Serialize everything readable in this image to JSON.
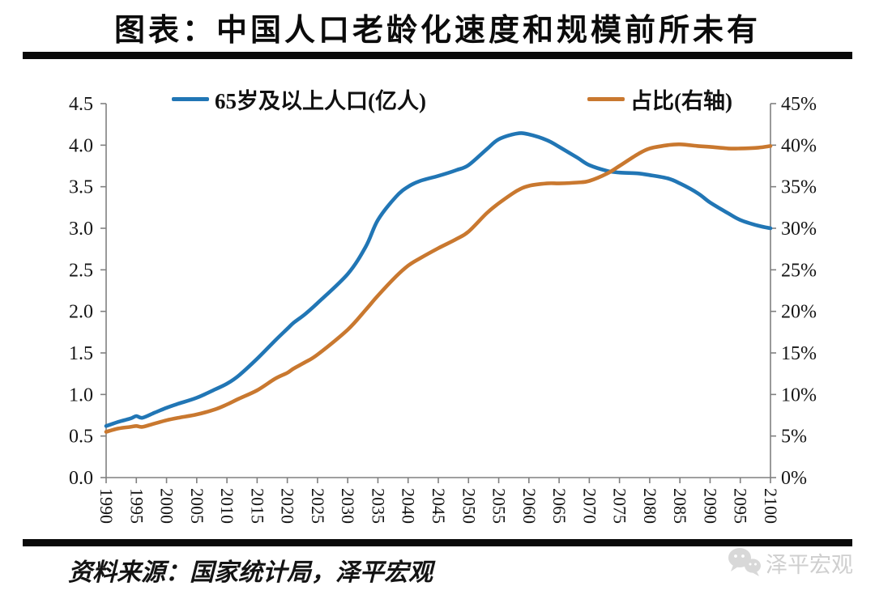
{
  "title": "图表：中国人口老龄化速度和规模前所未有",
  "legend": {
    "items": [
      {
        "label": "65岁及以上人口(亿人)",
        "color": "#2176B5"
      },
      {
        "label": "占比(右轴)",
        "color": "#C9782F"
      }
    ]
  },
  "source_note": "资料来源：国家统计局，泽平宏观",
  "watermark": {
    "label": "泽平宏观",
    "icon": "wechat-bubbles-icon",
    "color": "#CFCFCF"
  },
  "colors": {
    "series_population": "#2176B5",
    "series_share": "#C9782F",
    "axis_line": "#808080",
    "tick_label": "#151515",
    "title_text": "#0B0B0B"
  },
  "chart_data": {
    "type": "line",
    "title": "中国人口老龄化速度和规模前所未有",
    "legend_position": "top",
    "grid": false,
    "x_range": [
      1990,
      2100
    ],
    "x_ticks": [
      1990,
      1995,
      2000,
      2005,
      2010,
      2015,
      2020,
      2025,
      2030,
      2035,
      2040,
      2045,
      2050,
      2055,
      2060,
      2065,
      2070,
      2075,
      2080,
      2085,
      2090,
      2095,
      2100
    ],
    "left_axis": {
      "min": 0,
      "max": 4.5,
      "step": 0.5,
      "tick_labels": [
        "0.0",
        "0.5",
        "1.0",
        "1.5",
        "2.0",
        "2.5",
        "3.0",
        "3.5",
        "4.0",
        "4.5"
      ]
    },
    "right_axis": {
      "min": 0,
      "max": 45,
      "step": 5,
      "suffix": "%",
      "tick_labels": [
        "0%",
        "5%",
        "10%",
        "15%",
        "20%",
        "25%",
        "30%",
        "35%",
        "40%",
        "45%"
      ]
    },
    "series": [
      {
        "name": "65岁及以上人口(亿人)",
        "axis": "left",
        "color": "#2176B5",
        "points": [
          [
            1990,
            0.62
          ],
          [
            1992,
            0.67
          ],
          [
            1994,
            0.71
          ],
          [
            1995,
            0.74
          ],
          [
            1996,
            0.72
          ],
          [
            1998,
            0.78
          ],
          [
            2000,
            0.84
          ],
          [
            2002,
            0.89
          ],
          [
            2005,
            0.96
          ],
          [
            2008,
            1.06
          ],
          [
            2010,
            1.13
          ],
          [
            2012,
            1.23
          ],
          [
            2015,
            1.43
          ],
          [
            2018,
            1.65
          ],
          [
            2020,
            1.79
          ],
          [
            2021,
            1.86
          ],
          [
            2023,
            1.97
          ],
          [
            2025,
            2.1
          ],
          [
            2030,
            2.45
          ],
          [
            2033,
            2.78
          ],
          [
            2035,
            3.1
          ],
          [
            2038,
            3.38
          ],
          [
            2040,
            3.5
          ],
          [
            2042,
            3.57
          ],
          [
            2045,
            3.63
          ],
          [
            2048,
            3.7
          ],
          [
            2050,
            3.76
          ],
          [
            2053,
            3.95
          ],
          [
            2055,
            4.07
          ],
          [
            2058,
            4.14
          ],
          [
            2060,
            4.13
          ],
          [
            2063,
            4.06
          ],
          [
            2065,
            3.98
          ],
          [
            2068,
            3.85
          ],
          [
            2070,
            3.76
          ],
          [
            2073,
            3.69
          ],
          [
            2075,
            3.67
          ],
          [
            2078,
            3.66
          ],
          [
            2080,
            3.64
          ],
          [
            2083,
            3.6
          ],
          [
            2085,
            3.54
          ],
          [
            2088,
            3.42
          ],
          [
            2090,
            3.31
          ],
          [
            2093,
            3.18
          ],
          [
            2095,
            3.1
          ],
          [
            2098,
            3.03
          ],
          [
            2100,
            3.0
          ]
        ]
      },
      {
        "name": "占比(右轴)",
        "axis": "right",
        "color": "#C9782F",
        "points": [
          [
            1990,
            5.5
          ],
          [
            1992,
            5.9
          ],
          [
            1994,
            6.1
          ],
          [
            1995,
            6.2
          ],
          [
            1996,
            6.1
          ],
          [
            1998,
            6.5
          ],
          [
            2000,
            6.9
          ],
          [
            2002,
            7.2
          ],
          [
            2005,
            7.6
          ],
          [
            2008,
            8.2
          ],
          [
            2010,
            8.8
          ],
          [
            2012,
            9.5
          ],
          [
            2015,
            10.5
          ],
          [
            2018,
            11.9
          ],
          [
            2020,
            12.6
          ],
          [
            2021,
            13.1
          ],
          [
            2023,
            13.9
          ],
          [
            2025,
            14.8
          ],
          [
            2030,
            17.8
          ],
          [
            2033,
            20.2
          ],
          [
            2035,
            21.9
          ],
          [
            2038,
            24.2
          ],
          [
            2040,
            25.5
          ],
          [
            2042,
            26.4
          ],
          [
            2045,
            27.6
          ],
          [
            2048,
            28.7
          ],
          [
            2050,
            29.6
          ],
          [
            2053,
            31.8
          ],
          [
            2055,
            33.0
          ],
          [
            2058,
            34.5
          ],
          [
            2060,
            35.1
          ],
          [
            2063,
            35.4
          ],
          [
            2065,
            35.4
          ],
          [
            2068,
            35.5
          ],
          [
            2070,
            35.7
          ],
          [
            2073,
            36.6
          ],
          [
            2075,
            37.5
          ],
          [
            2078,
            38.9
          ],
          [
            2080,
            39.6
          ],
          [
            2083,
            40.0
          ],
          [
            2085,
            40.1
          ],
          [
            2088,
            39.9
          ],
          [
            2090,
            39.8
          ],
          [
            2093,
            39.6
          ],
          [
            2095,
            39.6
          ],
          [
            2098,
            39.7
          ],
          [
            2100,
            39.9
          ]
        ]
      }
    ]
  }
}
